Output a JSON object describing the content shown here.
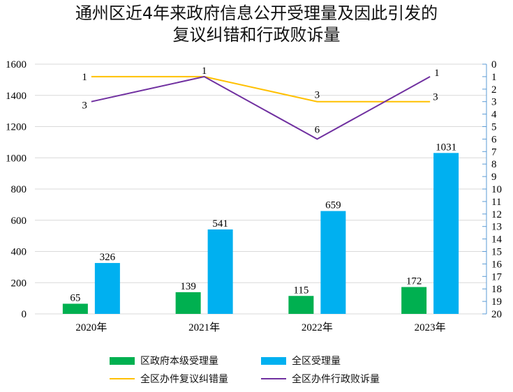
{
  "chart_data": {
    "type": "bar",
    "title_line1": "通州区近4年来政府信息公开受理量及因此引发的",
    "title_line2": "复议纠错和行政败诉量",
    "categories": [
      "2020年",
      "2021年",
      "2022年",
      "2023年"
    ],
    "left_axis": {
      "ylim": [
        0,
        1600
      ],
      "ticks": [
        "0",
        "200",
        "400",
        "600",
        "800",
        "1000",
        "1200",
        "1400",
        "1600"
      ]
    },
    "right_axis": {
      "ylim": [
        0,
        20
      ],
      "inverted": true,
      "ticks": [
        "0",
        "1",
        "2",
        "3",
        "4",
        "5",
        "6",
        "7",
        "8",
        "9",
        "10",
        "11",
        "12",
        "13",
        "14",
        "15",
        "16",
        "17",
        "18",
        "19",
        "20"
      ]
    },
    "grid": true,
    "bar_series": [
      {
        "name": "区政府本级受理量",
        "color": "#00b050",
        "values": [
          65,
          139,
          115,
          172
        ],
        "labels": [
          "65",
          "139",
          "115",
          "172"
        ]
      },
      {
        "name": "全区受理量",
        "color": "#00b0f0",
        "values": [
          326,
          541,
          659,
          1031
        ],
        "labels": [
          "326",
          "541",
          "659",
          "1031"
        ]
      }
    ],
    "line_series": [
      {
        "name": "全区办件复议纠错量",
        "color": "#ffc000",
        "axis": "right",
        "values": [
          1,
          1,
          3,
          3
        ],
        "labels": [
          "1",
          "1",
          "3",
          "3"
        ]
      },
      {
        "name": "全区办件行政败诉量",
        "color": "#7030a0",
        "axis": "right",
        "values": [
          3,
          1,
          6,
          1
        ],
        "labels": [
          "3",
          "1",
          "6",
          "1"
        ]
      }
    ],
    "legend_position": "bottom"
  }
}
